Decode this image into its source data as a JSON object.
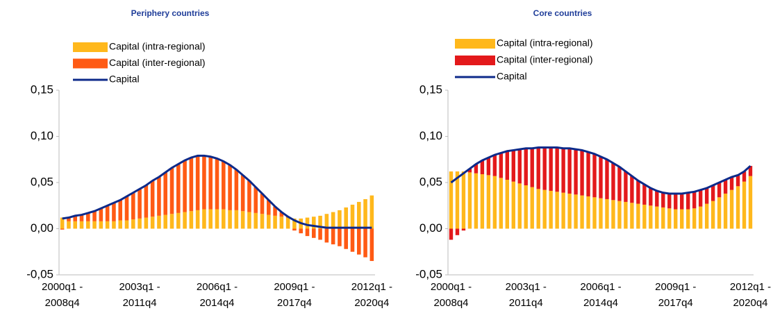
{
  "chart_data": [
    {
      "type": "bar",
      "stacked": true,
      "title": "Periphery countries",
      "categories": [
        "2000q1 - 2008q4",
        null,
        null,
        null,
        null,
        null,
        null,
        null,
        null,
        null,
        null,
        null,
        "2003q1 - 2011q4",
        null,
        null,
        null,
        null,
        null,
        null,
        null,
        null,
        null,
        null,
        null,
        "2006q1 - 2014q4",
        null,
        null,
        null,
        null,
        null,
        null,
        null,
        null,
        null,
        null,
        null,
        "2009q1 - 2017q4",
        null,
        null,
        null,
        null,
        null,
        null,
        null,
        null,
        null,
        null,
        null,
        "2012q1 - 2020q4"
      ],
      "ylim": [
        -0.05,
        0.15
      ],
      "yticks": [
        {
          "value": -0.05,
          "label": "-0,05"
        },
        {
          "value": 0,
          "label": "0,00"
        },
        {
          "value": 0.05,
          "label": "0,05"
        },
        {
          "value": 0.1,
          "label": "0,10"
        },
        {
          "value": 0.15,
          "label": "0,15"
        }
      ],
      "series": [
        {
          "name": "Capital (intra-regional)",
          "type": "bar",
          "color": "#ffb81c",
          "values": [
            0.012,
            0.008,
            0.008,
            0.008,
            0.008,
            0.008,
            0.008,
            0.008,
            0.008,
            0.009,
            0.009,
            0.01,
            0.011,
            0.012,
            0.013,
            0.014,
            0.015,
            0.016,
            0.017,
            0.018,
            0.019,
            0.02,
            0.021,
            0.021,
            0.021,
            0.021,
            0.02,
            0.02,
            0.019,
            0.018,
            0.017,
            0.016,
            0.015,
            0.014,
            0.013,
            0.012,
            0.011,
            0.011,
            0.012,
            0.013,
            0.014,
            0.016,
            0.018,
            0.02,
            0.023,
            0.026,
            0.029,
            0.032,
            0.036
          ]
        },
        {
          "name": "Capital (inter-regional)",
          "type": "bar",
          "color": "#ff5a14",
          "values": [
            -0.001,
            0.004,
            0.006,
            0.007,
            0.009,
            0.011,
            0.014,
            0.017,
            0.02,
            0.022,
            0.026,
            0.029,
            0.032,
            0.035,
            0.039,
            0.042,
            0.046,
            0.05,
            0.053,
            0.056,
            0.058,
            0.059,
            0.058,
            0.057,
            0.055,
            0.052,
            0.049,
            0.044,
            0.039,
            0.034,
            0.028,
            0.022,
            0.016,
            0.01,
            0.005,
            0.001,
            -0.002,
            -0.005,
            -0.008,
            -0.01,
            -0.012,
            -0.015,
            -0.017,
            -0.019,
            -0.022,
            -0.025,
            -0.028,
            -0.031,
            -0.035
          ]
        },
        {
          "name": "Capital",
          "type": "line",
          "color": "#0d2a8a",
          "values": [
            0.011,
            0.012,
            0.014,
            0.015,
            0.017,
            0.019,
            0.022,
            0.025,
            0.028,
            0.031,
            0.035,
            0.039,
            0.043,
            0.047,
            0.052,
            0.056,
            0.061,
            0.066,
            0.07,
            0.074,
            0.077,
            0.079,
            0.079,
            0.078,
            0.076,
            0.073,
            0.069,
            0.064,
            0.058,
            0.052,
            0.045,
            0.038,
            0.031,
            0.024,
            0.018,
            0.013,
            0.009,
            0.006,
            0.004,
            0.003,
            0.002,
            0.001,
            0.001,
            0.001,
            0.001,
            0.001,
            0.001,
            0.001,
            0.001
          ]
        }
      ]
    },
    {
      "type": "bar",
      "stacked": true,
      "title": "Core countries",
      "categories": [
        "2000q1 - 2008q4",
        null,
        null,
        null,
        null,
        null,
        null,
        null,
        null,
        null,
        null,
        null,
        "2003q1 - 2011q4",
        null,
        null,
        null,
        null,
        null,
        null,
        null,
        null,
        null,
        null,
        null,
        "2006q1 - 2014q4",
        null,
        null,
        null,
        null,
        null,
        null,
        null,
        null,
        null,
        null,
        null,
        "2009q1 - 2017q4",
        null,
        null,
        null,
        null,
        null,
        null,
        null,
        null,
        null,
        null,
        null,
        "2012q1 - 2020q4"
      ],
      "ylim": [
        -0.05,
        0.15
      ],
      "yticks": [
        {
          "value": -0.05,
          "label": "-0,05"
        },
        {
          "value": 0,
          "label": "0,00"
        },
        {
          "value": 0.05,
          "label": "0,05"
        },
        {
          "value": 0.1,
          "label": "0,10"
        },
        {
          "value": 0.15,
          "label": "0,15"
        }
      ],
      "series": [
        {
          "name": "Capital (intra-regional)",
          "type": "bar",
          "color": "#ffb81c",
          "values": [
            0.062,
            0.062,
            0.062,
            0.061,
            0.06,
            0.059,
            0.058,
            0.057,
            0.055,
            0.053,
            0.051,
            0.049,
            0.047,
            0.045,
            0.043,
            0.042,
            0.041,
            0.04,
            0.039,
            0.038,
            0.037,
            0.036,
            0.035,
            0.034,
            0.033,
            0.032,
            0.031,
            0.03,
            0.029,
            0.028,
            0.027,
            0.026,
            0.025,
            0.024,
            0.023,
            0.022,
            0.021,
            0.021,
            0.021,
            0.022,
            0.024,
            0.027,
            0.03,
            0.034,
            0.038,
            0.042,
            0.046,
            0.051,
            0.057
          ]
        },
        {
          "name": "Capital (inter-regional)",
          "type": "bar",
          "color": "#e3191b",
          "values": [
            -0.012,
            -0.007,
            -0.002,
            0.004,
            0.01,
            0.015,
            0.019,
            0.023,
            0.027,
            0.031,
            0.034,
            0.037,
            0.04,
            0.042,
            0.045,
            0.046,
            0.047,
            0.048,
            0.048,
            0.049,
            0.049,
            0.049,
            0.048,
            0.047,
            0.045,
            0.043,
            0.04,
            0.037,
            0.033,
            0.029,
            0.025,
            0.022,
            0.019,
            0.017,
            0.016,
            0.016,
            0.017,
            0.017,
            0.018,
            0.018,
            0.018,
            0.017,
            0.017,
            0.016,
            0.015,
            0.014,
            0.012,
            0.011,
            0.011
          ]
        },
        {
          "name": "Capital",
          "type": "line",
          "color": "#0d2a8a",
          "values": [
            0.05,
            0.055,
            0.06,
            0.065,
            0.07,
            0.074,
            0.077,
            0.08,
            0.082,
            0.084,
            0.085,
            0.086,
            0.087,
            0.087,
            0.088,
            0.088,
            0.088,
            0.088,
            0.087,
            0.087,
            0.086,
            0.085,
            0.083,
            0.081,
            0.078,
            0.075,
            0.071,
            0.067,
            0.062,
            0.057,
            0.052,
            0.048,
            0.044,
            0.041,
            0.039,
            0.038,
            0.038,
            0.038,
            0.039,
            0.04,
            0.042,
            0.044,
            0.047,
            0.05,
            0.053,
            0.056,
            0.058,
            0.062,
            0.068
          ]
        }
      ]
    }
  ]
}
